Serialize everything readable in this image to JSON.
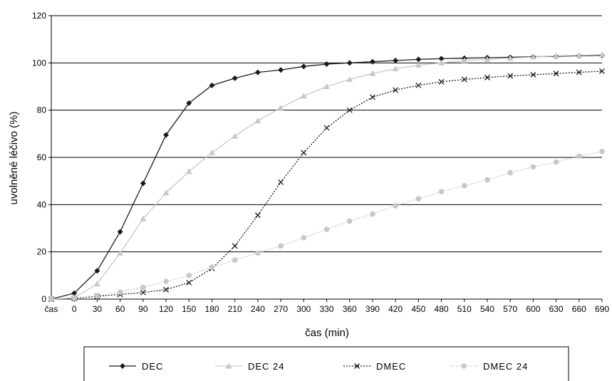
{
  "chart_data": {
    "type": "line",
    "xlabel": "čas (min)",
    "ylabel": "uvolněné léčivo (%)",
    "ylim": [
      0,
      120
    ],
    "y_ticks": [
      "0",
      "20",
      "40",
      "60",
      "80",
      "100",
      "120"
    ],
    "categories": [
      "čas",
      "0",
      "30",
      "60",
      "90",
      "120",
      "150",
      "180",
      "210",
      "240",
      "270",
      "300",
      "330",
      "360",
      "390",
      "420",
      "450",
      "480",
      "510",
      "540",
      "570",
      "600",
      "630",
      "660",
      "690"
    ],
    "grid": "horizontal",
    "legend_position": "bottom",
    "series": [
      {
        "name": "DEC",
        "color": "#1a1a1a",
        "marker": "diamond",
        "line_style": "solid",
        "values": [
          0,
          2.5,
          12,
          28.5,
          49,
          69.5,
          83,
          90.5,
          93.5,
          96,
          97,
          98.5,
          99.5,
          100,
          100.5,
          101,
          101.5,
          101.8,
          102,
          102.2,
          102.4,
          102.6,
          102.8,
          103,
          103.2
        ]
      },
      {
        "name": "DEC 24",
        "color": "#c8c8c8",
        "marker": "triangle",
        "line_style": "solid",
        "values": [
          0,
          0.5,
          6.5,
          19.5,
          34,
          45,
          54,
          62,
          69,
          75.5,
          81,
          86,
          90,
          93,
          95.5,
          97.5,
          99,
          100,
          101,
          101.5,
          102,
          102.5,
          103,
          103.2,
          103.5
        ]
      },
      {
        "name": "DMEC",
        "color": "#1a1a1a",
        "marker": "x",
        "line_style": "dotted",
        "values": [
          0,
          0.3,
          1.2,
          2,
          2.8,
          4,
          7,
          13,
          22.5,
          35.5,
          49.5,
          62,
          72.5,
          80,
          85.5,
          88.5,
          90.5,
          92,
          93,
          93.8,
          94.5,
          95,
          95.5,
          96,
          96.5
        ]
      },
      {
        "name": "DMEC 24",
        "color": "#c8c8c8",
        "marker": "circle",
        "line_style": "dotted",
        "values": [
          0,
          0.5,
          1.5,
          3,
          5,
          7.5,
          10,
          13.5,
          16.5,
          19.5,
          22.5,
          26,
          29.5,
          33,
          36,
          39.5,
          42.5,
          45.5,
          48,
          50.5,
          53.5,
          56,
          58,
          60.5,
          62.5
        ]
      }
    ]
  }
}
